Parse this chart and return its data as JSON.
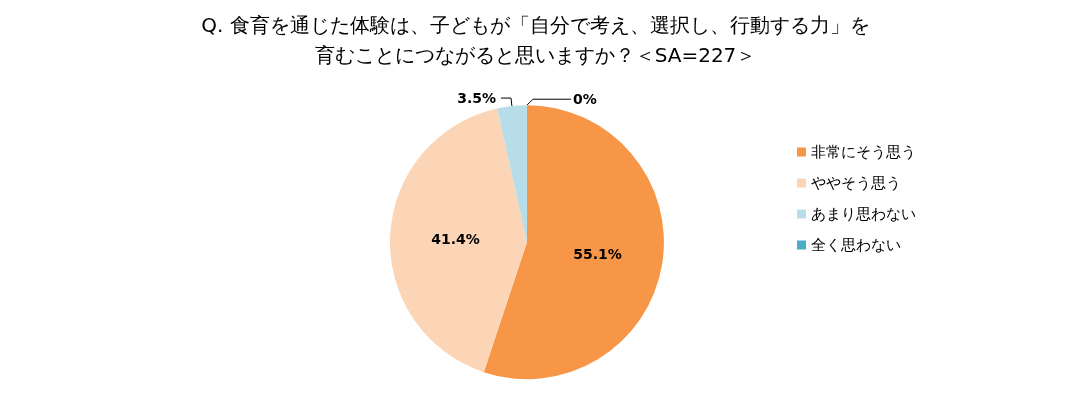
{
  "chart_data": {
    "type": "pie",
    "title": "Q. 食育を通じた体験は、子どもが「自分で考え、選択し、行動する力」を育むことにつながると思いますか？＜SA=227＞",
    "categories": [
      "非常にそう思う",
      "ややそう思う",
      "あまり思わない",
      "全く思わない"
    ],
    "values": [
      55.1,
      41.4,
      3.5,
      0
    ],
    "colors": [
      "#f79646",
      "#fbd5b5",
      "#b7dee8",
      "#4bacc6"
    ],
    "value_labels": [
      "55.1%",
      "41.4%",
      "3.5%",
      "0%"
    ],
    "legend": "right"
  }
}
